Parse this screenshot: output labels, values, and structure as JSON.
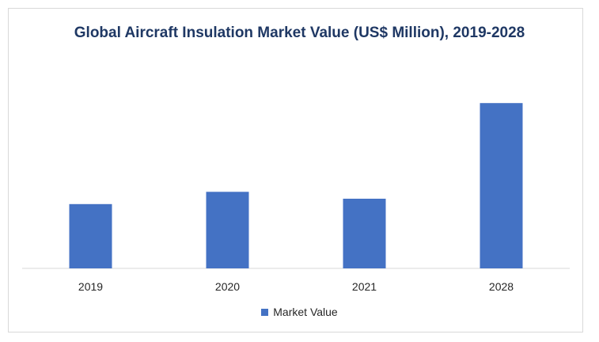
{
  "chart_data": {
    "type": "bar",
    "title": "Global Aircraft Insulation Market Value (US$ Million), 2019-2028",
    "categories": [
      "2019",
      "2020",
      "2021",
      "2028"
    ],
    "series": [
      {
        "name": "Market Value",
        "color": "#4472c4",
        "values": [
          84,
          100,
          91,
          216
        ]
      }
    ],
    "xlabel": "",
    "ylabel": "",
    "ylim": [
      0,
      240
    ],
    "grid": false,
    "legend": "bottom"
  }
}
